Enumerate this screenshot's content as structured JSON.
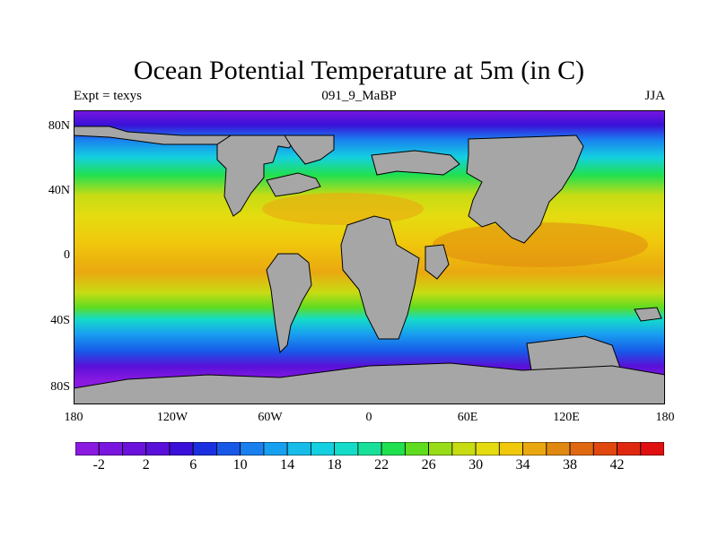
{
  "header": {
    "title": "Ocean Potential Temperature at 5m (in C)",
    "left_label": "Expt = texys",
    "center_label": "091_9_MaBP",
    "right_label": "JJA"
  },
  "axes": {
    "x_ticks": [
      "180",
      "120W",
      "60W",
      "0",
      "60E",
      "120E",
      "180"
    ],
    "y_ticks": [
      "80N",
      "40N",
      "0",
      "40S",
      "80S"
    ]
  },
  "colorbar": {
    "labels": [
      "-2",
      "2",
      "6",
      "10",
      "14",
      "18",
      "22",
      "26",
      "30",
      "34",
      "38",
      "42"
    ],
    "colors": [
      "#8a1ae0",
      "#7a16e0",
      "#6a12dc",
      "#5a10d8",
      "#3a10d8",
      "#1a30e0",
      "#1858e8",
      "#1a80f0",
      "#18a0f0",
      "#18bce8",
      "#14d0e0",
      "#14dcc8",
      "#18e098",
      "#20e050",
      "#60dc20",
      "#98dc18",
      "#c8dc14",
      "#e4dc10",
      "#f0c80c",
      "#eaa810",
      "#e08810",
      "#e06810",
      "#e04810",
      "#e02810",
      "#e01010"
    ]
  },
  "map_colors": {
    "land": "#a6a6a6",
    "outline": "#000000"
  }
}
